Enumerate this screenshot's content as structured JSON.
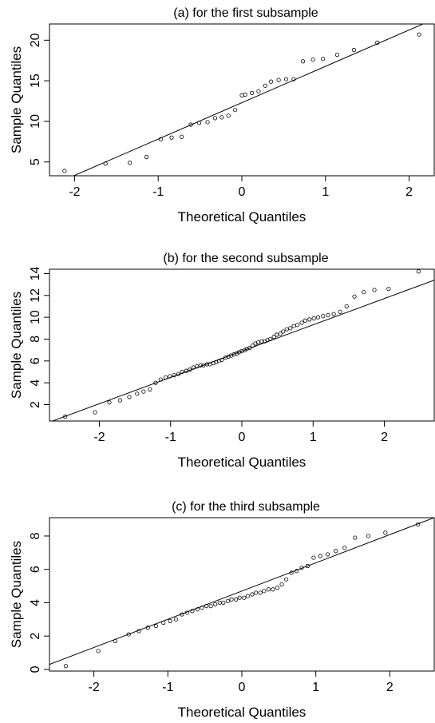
{
  "chart_data": [
    {
      "type": "scatter",
      "title": "(a) for the first subsample",
      "xlabel": "Theoretical Quantiles",
      "ylabel": "Sample Quantiles",
      "xlim": [
        -2.3,
        2.3
      ],
      "ylim": [
        3.3,
        22.0
      ],
      "x_ticks": [
        -2,
        -1,
        0,
        1,
        2
      ],
      "y_ticks": [
        5,
        10,
        15,
        20
      ],
      "reference_line": {
        "x1": -2.3,
        "y1": 2.0,
        "x2": 2.3,
        "y2": 22.6
      },
      "grid": false,
      "legend": "none",
      "points": {
        "x": [
          -2.12,
          -1.63,
          -1.34,
          -1.14,
          -0.97,
          -0.84,
          -0.72,
          -0.61,
          -0.51,
          -0.41,
          -0.32,
          -0.24,
          -0.16,
          -0.08,
          0.0,
          0.04,
          0.12,
          0.2,
          0.28,
          0.35,
          0.44,
          0.53,
          0.62,
          0.73,
          0.85,
          0.97,
          1.14,
          1.34,
          1.62,
          2.12
        ],
        "y": [
          3.9,
          4.8,
          4.9,
          5.6,
          7.8,
          8.0,
          8.1,
          9.6,
          9.8,
          9.9,
          10.4,
          10.5,
          10.7,
          11.4,
          13.2,
          13.3,
          13.5,
          13.7,
          14.4,
          14.9,
          15.1,
          15.2,
          15.2,
          17.4,
          17.6,
          17.7,
          18.2,
          18.8,
          19.7,
          20.7
        ]
      }
    },
    {
      "type": "scatter",
      "title": "(b) for the second subsample",
      "xlabel": "Theoretical Quantiles",
      "ylabel": "Sample Quantiles",
      "xlim": [
        -2.7,
        2.7
      ],
      "ylim": [
        0.5,
        14.4
      ],
      "x_ticks": [
        -2,
        -1,
        0,
        1,
        2
      ],
      "y_ticks": [
        2,
        4,
        6,
        8,
        10,
        12,
        14
      ],
      "reference_line": {
        "x1": -2.7,
        "y1": 0.4,
        "x2": 2.7,
        "y2": 13.4
      },
      "grid": false,
      "legend": "none",
      "points": {
        "x": [
          -2.48,
          -2.06,
          -1.86,
          -1.71,
          -1.58,
          -1.47,
          -1.38,
          -1.29,
          -1.21,
          -1.14,
          -1.07,
          -1.01,
          -0.95,
          -0.89,
          -0.84,
          -0.78,
          -0.73,
          -0.68,
          -0.63,
          -0.58,
          -0.54,
          -0.49,
          -0.45,
          -0.4,
          -0.36,
          -0.32,
          -0.28,
          -0.23,
          -0.19,
          -0.15,
          -0.11,
          -0.07,
          -0.04,
          0.0,
          0.04,
          0.07,
          0.11,
          0.15,
          0.19,
          0.23,
          0.28,
          0.32,
          0.36,
          0.4,
          0.45,
          0.49,
          0.54,
          0.58,
          0.63,
          0.68,
          0.73,
          0.78,
          0.84,
          0.89,
          0.95,
          1.01,
          1.07,
          1.14,
          1.21,
          1.29,
          1.38,
          1.47,
          1.58,
          1.71,
          1.86,
          2.06,
          2.48
        ],
        "y": [
          0.9,
          1.3,
          2.2,
          2.4,
          2.7,
          3.0,
          3.2,
          3.4,
          4.0,
          4.3,
          4.5,
          4.6,
          4.7,
          4.8,
          5.0,
          5.1,
          5.2,
          5.4,
          5.5,
          5.6,
          5.6,
          5.7,
          5.7,
          5.8,
          5.9,
          6.0,
          6.1,
          6.3,
          6.4,
          6.5,
          6.6,
          6.7,
          6.8,
          6.9,
          7.0,
          7.1,
          7.2,
          7.4,
          7.6,
          7.7,
          7.8,
          7.8,
          7.9,
          8.0,
          8.2,
          8.4,
          8.5,
          8.7,
          8.9,
          9.0,
          9.2,
          9.3,
          9.5,
          9.7,
          9.8,
          9.9,
          10.0,
          10.1,
          10.2,
          10.3,
          10.5,
          11.0,
          11.9,
          12.3,
          12.5,
          12.6,
          14.2
        ]
      }
    },
    {
      "type": "scatter",
      "title": "(c) for the third subsample",
      "xlabel": "Theoretical Quantiles",
      "ylabel": "Sample Quantiles",
      "xlim": [
        -2.6,
        2.6
      ],
      "ylim": [
        -0.1,
        9.1
      ],
      "x_ticks": [
        -2,
        -1,
        0,
        1,
        2
      ],
      "y_ticks": [
        0,
        2,
        4,
        6,
        8
      ],
      "reference_line": {
        "x1": -2.6,
        "y1": 0.3,
        "x2": 2.6,
        "y2": 9.1
      },
      "grid": false,
      "legend": "none",
      "points": {
        "x": [
          -2.38,
          -1.94,
          -1.71,
          -1.53,
          -1.39,
          -1.27,
          -1.16,
          -1.06,
          -0.97,
          -0.89,
          -0.81,
          -0.74,
          -0.67,
          -0.6,
          -0.54,
          -0.48,
          -0.42,
          -0.36,
          -0.3,
          -0.25,
          -0.19,
          -0.14,
          -0.08,
          -0.03,
          0.03,
          0.08,
          0.14,
          0.19,
          0.25,
          0.3,
          0.36,
          0.42,
          0.48,
          0.54,
          0.6,
          0.67,
          0.74,
          0.81,
          0.89,
          0.97,
          1.06,
          1.16,
          1.27,
          1.39,
          1.53,
          1.71,
          1.94,
          2.38
        ],
        "y": [
          0.2,
          1.1,
          1.7,
          2.1,
          2.3,
          2.5,
          2.6,
          2.8,
          2.9,
          3.0,
          3.3,
          3.4,
          3.5,
          3.6,
          3.7,
          3.8,
          3.8,
          3.9,
          4.0,
          4.0,
          4.1,
          4.2,
          4.2,
          4.3,
          4.3,
          4.4,
          4.5,
          4.6,
          4.6,
          4.7,
          4.8,
          4.8,
          4.9,
          5.1,
          5.4,
          5.8,
          5.9,
          6.1,
          6.2,
          6.7,
          6.8,
          6.9,
          7.1,
          7.3,
          7.9,
          8.0,
          8.2,
          8.7
        ]
      }
    }
  ]
}
